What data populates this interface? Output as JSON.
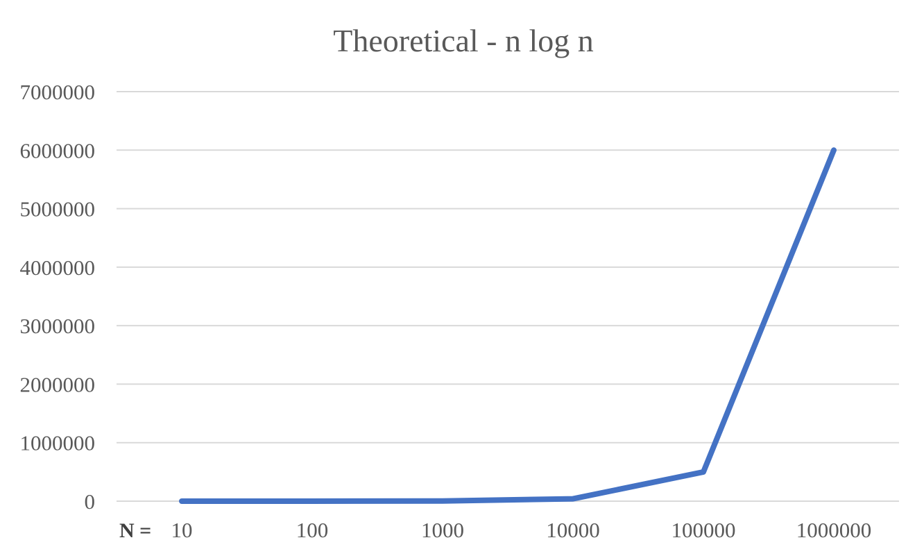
{
  "chart_data": {
    "type": "line",
    "title": "Theoretical - n log n",
    "x_prefix_label": "N =",
    "categories": [
      "10",
      "100",
      "1000",
      "10000",
      "100000",
      "1000000"
    ],
    "series": [
      {
        "values": [
          10,
          200,
          3000,
          40000,
          500000,
          6000000
        ],
        "color": "#4472c4"
      }
    ],
    "yticks": [
      0,
      1000000,
      2000000,
      3000000,
      4000000,
      5000000,
      6000000,
      7000000
    ],
    "ylim": [
      0,
      7000000
    ],
    "grid": true,
    "legend": "none"
  }
}
